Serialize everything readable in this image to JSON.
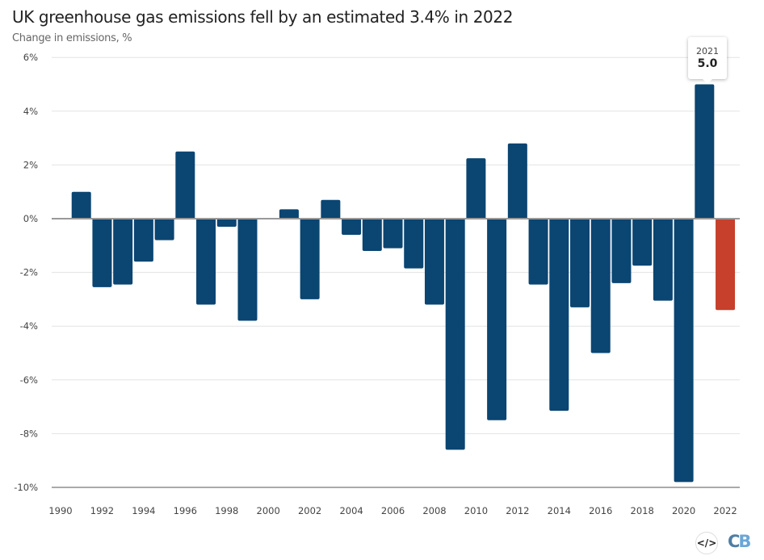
{
  "chart_data": {
    "type": "bar",
    "title": "UK greenhouse gas emissions fell by an estimated 3.4% in 2022",
    "subtitle": "Change in emissions, %",
    "xlabel": "",
    "ylabel": "",
    "ylim": [
      -10,
      6
    ],
    "yticks": [
      "6%",
      "4%",
      "2%",
      "0%",
      "-2%",
      "-4%",
      "-6%",
      "-8%",
      "-10%"
    ],
    "ytick_values": [
      6,
      4,
      2,
      0,
      -2,
      -4,
      -6,
      -8,
      -10
    ],
    "xticks": [
      "1990",
      "1992",
      "1994",
      "1996",
      "1998",
      "2000",
      "2002",
      "2004",
      "2006",
      "2008",
      "2010",
      "2012",
      "2014",
      "2016",
      "2018",
      "2020",
      "2022"
    ],
    "grid": true,
    "categories": [
      1991,
      1992,
      1993,
      1994,
      1995,
      1996,
      1997,
      1998,
      1999,
      2000,
      2001,
      2002,
      2003,
      2004,
      2005,
      2006,
      2007,
      2008,
      2009,
      2010,
      2011,
      2012,
      2013,
      2014,
      2015,
      2016,
      2017,
      2018,
      2019,
      2020,
      2021,
      2022
    ],
    "values": [
      1.0,
      -2.55,
      -2.45,
      -1.6,
      -0.8,
      2.5,
      -3.2,
      -0.3,
      -3.8,
      0.0,
      0.35,
      -3.0,
      0.7,
      -0.6,
      -1.2,
      -1.1,
      -1.85,
      -3.2,
      -8.6,
      2.25,
      -7.5,
      2.8,
      -2.45,
      -7.15,
      -3.3,
      -5.0,
      -2.4,
      -1.75,
      -3.05,
      -9.8,
      5.0,
      -3.4
    ],
    "colors": {
      "default": "#0b4572",
      "highlight": "#c6402c"
    },
    "highlight_category": 2022,
    "tooltip": {
      "year": "2021",
      "value": "5.0"
    }
  },
  "footer": {
    "embed_icon": "code-icon",
    "logo_left": "C",
    "logo_right": "B"
  }
}
